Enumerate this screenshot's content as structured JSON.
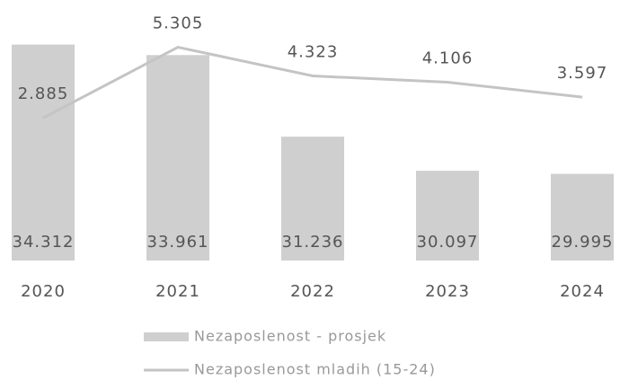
{
  "chart_data": {
    "type": "bar-line",
    "categories": [
      "2020",
      "2021",
      "2022",
      "2023",
      "2024"
    ],
    "series": [
      {
        "name": "Nezaposlenost - prosjek",
        "type": "bar",
        "color": "#cfcfcf",
        "values": [
          34312,
          33961,
          31236,
          30097,
          29995
        ],
        "value_labels": [
          "34.312",
          "33.961",
          "31.236",
          "30.097",
          "29.995"
        ]
      },
      {
        "name": "Nezaposlenost mladih (15-24)",
        "type": "line",
        "axis": "y2",
        "color": "#c4c4c4",
        "values": [
          2885,
          5305,
          4323,
          4106,
          3597
        ],
        "value_labels": [
          "2.885",
          "5.305",
          "4.323",
          "4.106",
          "3.597"
        ]
      }
    ],
    "ylim": [
      27100,
      34900
    ],
    "y2lim": [
      -2000,
      6000
    ],
    "legend": "bottom"
  }
}
